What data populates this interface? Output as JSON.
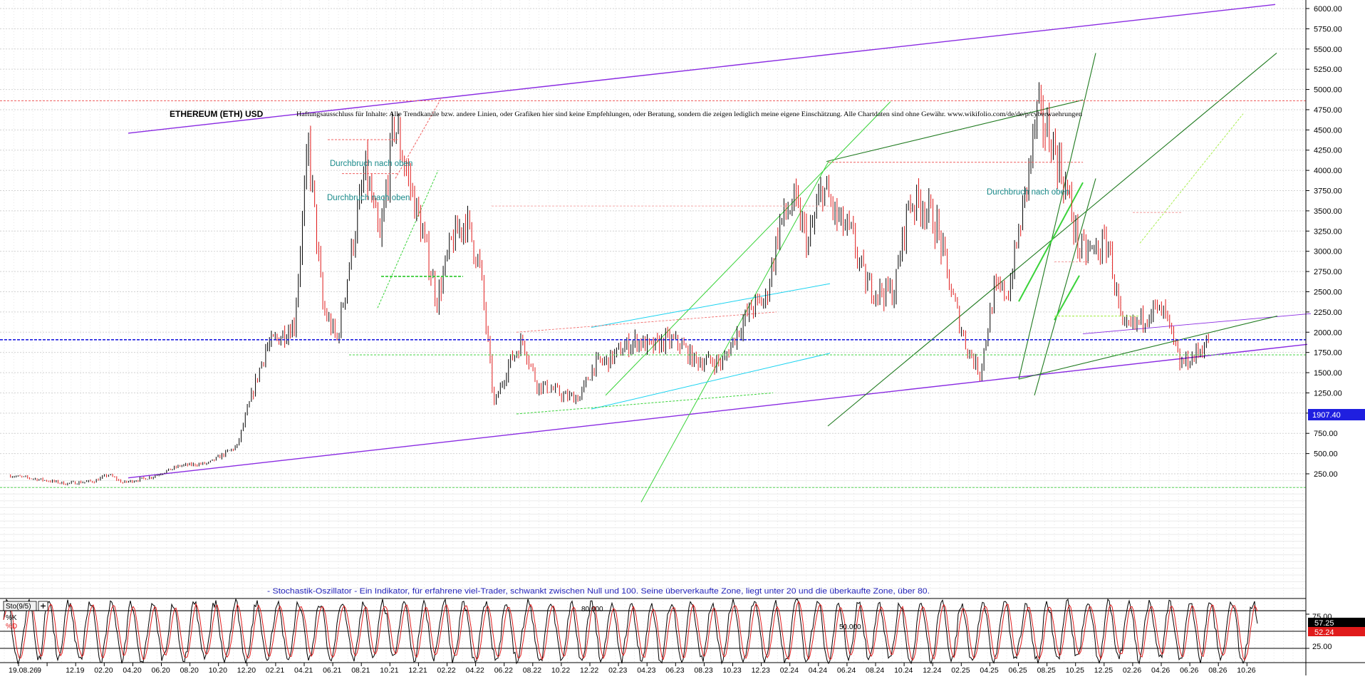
{
  "title": "ETHEREUM (ETH) USD",
  "disclaimer": "Haftungsausschluss für Inhalte: Alle Trendkanäle bzw. andere Linien, oder Grafiken hier sind keine Empfehlungen, oder Beratung, sondern die zeigen lediglich meine eigene Einschätzung. Alle Chartdaten sind ohne Gewähr.  www.wikifolio.com/de/de/p/cyberwaehrungen",
  "annotations": [
    "Durchbruch nach oben",
    "Durchbruch nach oben",
    "Durchbruch nach oben"
  ],
  "stoch_note": "- Stochastik-Oszillator - Ein Indikator, für erfahrene viel-Trader, schwankt zwischen Null und 100. Seine überverkaufte Zone, liegt unter 20 und die überkaufte Zone, über 80.",
  "indicator": {
    "button_label": "Sto(9/5)",
    "k_label": "%K",
    "d_label": "%D",
    "level_80_label": "80.000",
    "level_50_label": "50.000",
    "ticks": [
      "75.00",
      "25.00"
    ],
    "k_value": "57.25",
    "d_value": "52.24"
  },
  "price_tag": "1907.40",
  "colors": {
    "price_tag": "#1f1fe0",
    "k_tag": "#000000",
    "d_tag": "#e01b1b",
    "candle_up": "#000000",
    "candle_down": "#e01b1b",
    "channel_purple": "#8a2be2",
    "trend_green": "#39d339",
    "trend_darkgreen": "#1f7a1f",
    "trend_cyan": "#19d3f0"
  },
  "chart_data": {
    "type": "line",
    "title": "ETHEREUM (ETH) USD",
    "ylim": [
      0,
      6100
    ],
    "y_ticks": [
      250,
      500,
      750,
      1000,
      1250,
      1500,
      1750,
      2000,
      2250,
      2500,
      2750,
      3000,
      3250,
      3500,
      3750,
      4000,
      4250,
      4500,
      4750,
      5000,
      5250,
      5500,
      5750,
      6000
    ],
    "y_tick_labels": [
      "250.00",
      "500.00",
      "750.00",
      "1000.00",
      "1250.00",
      "1500.00",
      "1750.00",
      "2000.00",
      "2250.00",
      "2500.00",
      "2750.00",
      "3000.00",
      "3250.00",
      "3500.00",
      "3750.00",
      "4000.00",
      "4250.00",
      "4500.00",
      "4750.00",
      "5000.00",
      "5250.00",
      "5500.00",
      "5750.00",
      "6000.00"
    ],
    "x_tick_labels": [
      "19.08.26",
      "9",
      "12.19",
      "02.20",
      "04.20",
      "06.20",
      "08.20",
      "10.20",
      "12.20",
      "02.21",
      "04.21",
      "06.21",
      "08.21",
      "10.21",
      "12.21",
      "02.22",
      "04.22",
      "06.22",
      "08.22",
      "10.22",
      "12.22",
      "02.23",
      "04.23",
      "06.23",
      "08.23",
      "10.23",
      "12.23",
      "02.24",
      "04.24",
      "06.24",
      "08.24",
      "10.24",
      "12.24",
      "02.25",
      "04.25",
      "06.25",
      "08.25",
      "10.25",
      "12.25",
      "02.26",
      "04.26",
      "06.26",
      "08.26",
      "10.26"
    ],
    "grid": true,
    "last_price": 1907.4,
    "series": [
      {
        "name": "",
        "x": [
          "08.19",
          "10.19",
          "12.19",
          "02.20",
          "03.20",
          "04.20",
          "06.20",
          "08.20",
          "10.20",
          "12.20",
          "01.21",
          "02.21",
          "04.21",
          "05.21",
          "06.21",
          "07.21",
          "08.21",
          "09.21",
          "10.21",
          "11.21",
          "12.21",
          "01.22",
          "02.22",
          "03.22",
          "04.22",
          "05.22",
          "06.22",
          "07.22",
          "08.22",
          "09.22",
          "10.22",
          "11.22",
          "12.22",
          "01.23",
          "02.23",
          "03.23",
          "04.23",
          "05.23",
          "06.23",
          "07.23",
          "08.23",
          "09.23",
          "10.23",
          "11.23",
          "12.23",
          "01.24",
          "02.24",
          "03.24",
          "04.24",
          "05.24",
          "06.24",
          "07.24",
          "08.24",
          "09.24",
          "10.24",
          "11.24",
          "12.24",
          "01.25",
          "02.25",
          "03.25",
          "04.25",
          "05.25",
          "06.25",
          "07.25",
          "08.25",
          "09.25",
          "10.25",
          "11.25",
          "12.25",
          "01.26",
          "02.26",
          "03.26",
          "04.26",
          "05.26",
          "06.26",
          "07.26",
          "08.26"
        ],
        "values": [
          230,
          185,
          130,
          160,
          240,
          140,
          210,
          350,
          380,
          590,
          1200,
          1800,
          2100,
          4300,
          2300,
          1900,
          3000,
          4000,
          3100,
          4600,
          3900,
          3200,
          2400,
          3100,
          3400,
          2800,
          1100,
          1600,
          1900,
          1350,
          1300,
          1200,
          1200,
          1600,
          1650,
          1800,
          1900,
          1800,
          1900,
          1860,
          1650,
          1640,
          1620,
          2000,
          2300,
          2400,
          3350,
          3600,
          3100,
          3800,
          3400,
          3200,
          2600,
          2500,
          2500,
          3600,
          3600,
          3300,
          2500,
          1850,
          1500,
          2500,
          2500,
          3500,
          4700,
          4400,
          3800,
          3000,
          3000,
          3100,
          2000,
          2100,
          2300,
          2200,
          1600,
          1700,
          1907.4
        ]
      }
    ]
  }
}
